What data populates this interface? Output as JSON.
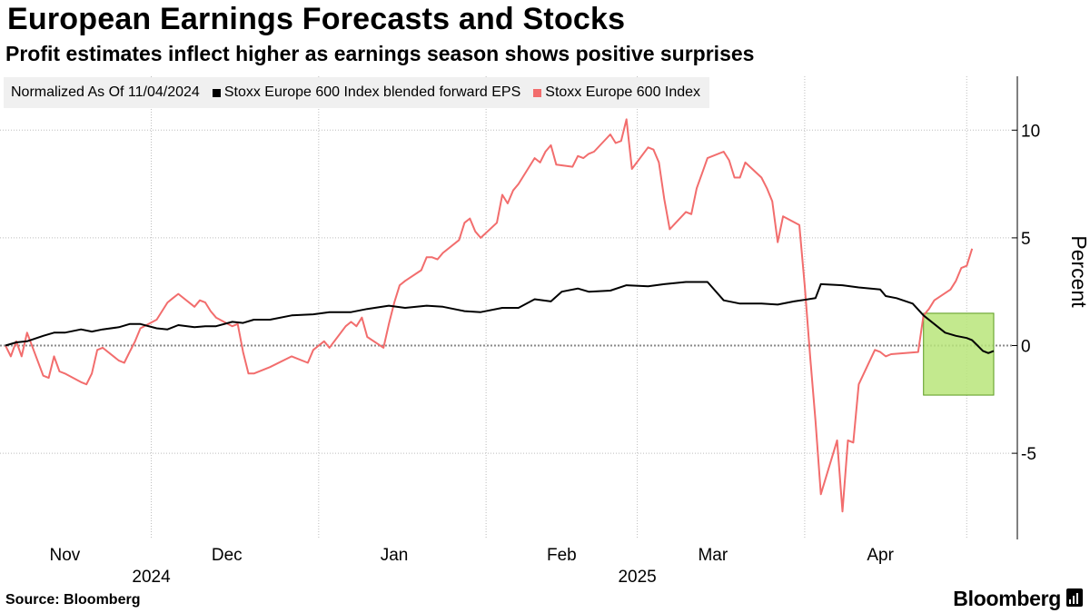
{
  "header": {
    "title": "European Earnings Forecasts and Stocks",
    "subtitle": "Profit estimates inflect higher as earnings season shows positive surprises"
  },
  "legend": {
    "note": "Normalized As Of 11/04/2024",
    "items": [
      {
        "label": "Stoxx Europe 600 Index blended forward EPS",
        "color": "#000000"
      },
      {
        "label": "Stoxx Europe 600 Index",
        "color": "#f26d6d"
      }
    ]
  },
  "footer": {
    "source": "Source: Bloomberg",
    "brand": "Bloomberg"
  },
  "colors": {
    "eps_line": "#000000",
    "index_line": "#f26d6d",
    "highlight_fill": "#b9e57a",
    "highlight_stroke": "#5a9a1e",
    "grid": "#bdbdbd",
    "zero_line": "#8a8a8a"
  },
  "chart_data": {
    "type": "line",
    "unit": "Percent",
    "x_type": "date",
    "x_range": [
      "2024-11-04",
      "2025-05-06"
    ],
    "ylim": [
      -9,
      12.5
    ],
    "y_ticks": [
      -5,
      0,
      5,
      10
    ],
    "grid": "dotted",
    "y_axis_side": "right",
    "legend_position": "top-left",
    "x_ticks": [
      {
        "date": "2024-11-15",
        "label": "Nov"
      },
      {
        "date": "2024-12-15",
        "label": "Dec"
      },
      {
        "date": "2025-01-15",
        "label": "Jan"
      },
      {
        "date": "2025-02-15",
        "label": "Feb"
      },
      {
        "date": "2025-03-15",
        "label": "Mar"
      },
      {
        "date": "2025-04-15",
        "label": "Apr"
      }
    ],
    "x_month_boundaries": [
      "2024-12-01",
      "2025-01-01",
      "2025-02-01",
      "2025-03-01",
      "2025-04-01",
      "2025-05-01"
    ],
    "year_labels": [
      {
        "date": "2024-12-01",
        "label": "2024"
      },
      {
        "date": "2025-03-01",
        "label": "2025"
      }
    ],
    "highlight": {
      "x_start": "2025-04-23",
      "x_end": "2025-05-06",
      "y_start": -2.3,
      "y_end": 1.5
    },
    "series": [
      {
        "name": "Stoxx Europe 600 Index blended forward EPS",
        "color": "#000000",
        "points": [
          [
            "2024-11-04",
            0.0
          ],
          [
            "2024-11-06",
            0.15
          ],
          [
            "2024-11-08",
            0.2
          ],
          [
            "2024-11-11",
            0.45
          ],
          [
            "2024-11-13",
            0.6
          ],
          [
            "2024-11-15",
            0.6
          ],
          [
            "2024-11-18",
            0.75
          ],
          [
            "2024-11-20",
            0.65
          ],
          [
            "2024-11-22",
            0.75
          ],
          [
            "2024-11-25",
            0.85
          ],
          [
            "2024-11-27",
            1.0
          ],
          [
            "2024-11-29",
            1.0
          ],
          [
            "2024-12-02",
            0.8
          ],
          [
            "2024-12-04",
            0.75
          ],
          [
            "2024-12-06",
            0.95
          ],
          [
            "2024-12-09",
            0.85
          ],
          [
            "2024-12-11",
            0.9
          ],
          [
            "2024-12-13",
            0.9
          ],
          [
            "2024-12-16",
            1.1
          ],
          [
            "2024-12-18",
            1.05
          ],
          [
            "2024-12-20",
            1.2
          ],
          [
            "2024-12-23",
            1.2
          ],
          [
            "2024-12-27",
            1.4
          ],
          [
            "2024-12-31",
            1.45
          ],
          [
            "2025-01-03",
            1.55
          ],
          [
            "2025-01-07",
            1.55
          ],
          [
            "2025-01-10",
            1.7
          ],
          [
            "2025-01-14",
            1.85
          ],
          [
            "2025-01-17",
            1.75
          ],
          [
            "2025-01-21",
            1.85
          ],
          [
            "2025-01-24",
            1.8
          ],
          [
            "2025-01-28",
            1.6
          ],
          [
            "2025-01-31",
            1.55
          ],
          [
            "2025-02-04",
            1.75
          ],
          [
            "2025-02-07",
            1.75
          ],
          [
            "2025-02-10",
            2.15
          ],
          [
            "2025-02-13",
            2.05
          ],
          [
            "2025-02-15",
            2.5
          ],
          [
            "2025-02-18",
            2.65
          ],
          [
            "2025-02-20",
            2.5
          ],
          [
            "2025-02-24",
            2.55
          ],
          [
            "2025-02-27",
            2.8
          ],
          [
            "2025-03-03",
            2.75
          ],
          [
            "2025-03-06",
            2.85
          ],
          [
            "2025-03-10",
            2.95
          ],
          [
            "2025-03-14",
            2.95
          ],
          [
            "2025-03-17",
            2.1
          ],
          [
            "2025-03-20",
            1.95
          ],
          [
            "2025-03-24",
            1.95
          ],
          [
            "2025-03-27",
            1.9
          ],
          [
            "2025-03-30",
            2.05
          ],
          [
            "2025-04-03",
            2.2
          ],
          [
            "2025-04-04",
            2.85
          ],
          [
            "2025-04-08",
            2.8
          ],
          [
            "2025-04-11",
            2.7
          ],
          [
            "2025-04-15",
            2.6
          ],
          [
            "2025-04-16",
            2.3
          ],
          [
            "2025-04-18",
            2.2
          ],
          [
            "2025-04-21",
            1.95
          ],
          [
            "2025-04-23",
            1.4
          ],
          [
            "2025-04-25",
            1.0
          ],
          [
            "2025-04-27",
            0.6
          ],
          [
            "2025-04-29",
            0.45
          ],
          [
            "2025-05-01",
            0.35
          ],
          [
            "2025-05-02",
            0.25
          ],
          [
            "2025-05-03",
            0.0
          ],
          [
            "2025-05-04",
            -0.25
          ],
          [
            "2025-05-05",
            -0.35
          ],
          [
            "2025-05-06",
            -0.25
          ]
        ]
      },
      {
        "name": "Stoxx Europe 600 Index",
        "color": "#f26d6d",
        "points": [
          [
            "2024-11-04",
            0.0
          ],
          [
            "2024-11-05",
            -0.5
          ],
          [
            "2024-11-06",
            0.2
          ],
          [
            "2024-11-07",
            -0.5
          ],
          [
            "2024-11-08",
            0.6
          ],
          [
            "2024-11-11",
            -1.4
          ],
          [
            "2024-11-12",
            -1.5
          ],
          [
            "2024-11-13",
            -0.5
          ],
          [
            "2024-11-14",
            -1.2
          ],
          [
            "2024-11-15",
            -1.3
          ],
          [
            "2024-11-18",
            -1.7
          ],
          [
            "2024-11-19",
            -1.8
          ],
          [
            "2024-11-20",
            -1.3
          ],
          [
            "2024-11-21",
            -0.2
          ],
          [
            "2024-11-22",
            -0.1
          ],
          [
            "2024-11-25",
            -0.7
          ],
          [
            "2024-11-26",
            -0.8
          ],
          [
            "2024-11-27",
            -0.3
          ],
          [
            "2024-11-28",
            0.2
          ],
          [
            "2024-11-29",
            0.8
          ],
          [
            "2024-12-02",
            1.2
          ],
          [
            "2024-12-03",
            1.6
          ],
          [
            "2024-12-04",
            2.0
          ],
          [
            "2024-12-05",
            2.2
          ],
          [
            "2024-12-06",
            2.4
          ],
          [
            "2024-12-09",
            1.8
          ],
          [
            "2024-12-10",
            2.1
          ],
          [
            "2024-12-11",
            2.0
          ],
          [
            "2024-12-12",
            1.6
          ],
          [
            "2024-12-13",
            1.3
          ],
          [
            "2024-12-16",
            0.9
          ],
          [
            "2024-12-17",
            1.0
          ],
          [
            "2024-12-18",
            -0.3
          ],
          [
            "2024-12-19",
            -1.3
          ],
          [
            "2024-12-20",
            -1.3
          ],
          [
            "2024-12-23",
            -1.0
          ],
          [
            "2024-12-27",
            -0.5
          ],
          [
            "2024-12-30",
            -0.8
          ],
          [
            "2024-12-31",
            -0.2
          ],
          [
            "2025-01-02",
            0.2
          ],
          [
            "2025-01-03",
            -0.1
          ],
          [
            "2025-01-06",
            0.9
          ],
          [
            "2025-01-07",
            1.1
          ],
          [
            "2025-01-08",
            0.9
          ],
          [
            "2025-01-09",
            1.3
          ],
          [
            "2025-01-10",
            0.4
          ],
          [
            "2025-01-13",
            -0.1
          ],
          [
            "2025-01-14",
            1.0
          ],
          [
            "2025-01-15",
            2.0
          ],
          [
            "2025-01-16",
            2.8
          ],
          [
            "2025-01-17",
            3.0
          ],
          [
            "2025-01-20",
            3.5
          ],
          [
            "2025-01-21",
            4.1
          ],
          [
            "2025-01-22",
            4.1
          ],
          [
            "2025-01-23",
            4.0
          ],
          [
            "2025-01-24",
            4.3
          ],
          [
            "2025-01-27",
            4.9
          ],
          [
            "2025-01-28",
            5.7
          ],
          [
            "2025-01-29",
            5.9
          ],
          [
            "2025-01-30",
            5.3
          ],
          [
            "2025-01-31",
            5.0
          ],
          [
            "2025-02-03",
            5.7
          ],
          [
            "2025-02-04",
            7.0
          ],
          [
            "2025-02-05",
            6.6
          ],
          [
            "2025-02-06",
            7.2
          ],
          [
            "2025-02-07",
            7.5
          ],
          [
            "2025-02-10",
            8.7
          ],
          [
            "2025-02-11",
            8.5
          ],
          [
            "2025-02-12",
            9.0
          ],
          [
            "2025-02-13",
            9.3
          ],
          [
            "2025-02-14",
            8.4
          ],
          [
            "2025-02-17",
            8.3
          ],
          [
            "2025-02-18",
            8.8
          ],
          [
            "2025-02-19",
            8.7
          ],
          [
            "2025-02-20",
            8.9
          ],
          [
            "2025-02-21",
            9.0
          ],
          [
            "2025-02-24",
            9.8
          ],
          [
            "2025-02-25",
            9.4
          ],
          [
            "2025-02-26",
            9.5
          ],
          [
            "2025-02-27",
            10.5
          ],
          [
            "2025-02-28",
            8.2
          ],
          [
            "2025-03-03",
            9.2
          ],
          [
            "2025-03-04",
            9.1
          ],
          [
            "2025-03-05",
            8.5
          ],
          [
            "2025-03-06",
            6.8
          ],
          [
            "2025-03-07",
            5.4
          ],
          [
            "2025-03-10",
            6.2
          ],
          [
            "2025-03-11",
            6.1
          ],
          [
            "2025-03-12",
            7.3
          ],
          [
            "2025-03-13",
            8.0
          ],
          [
            "2025-03-14",
            8.7
          ],
          [
            "2025-03-17",
            9.0
          ],
          [
            "2025-03-18",
            8.6
          ],
          [
            "2025-03-19",
            7.8
          ],
          [
            "2025-03-20",
            7.8
          ],
          [
            "2025-03-21",
            8.5
          ],
          [
            "2025-03-24",
            7.8
          ],
          [
            "2025-03-25",
            7.3
          ],
          [
            "2025-03-26",
            6.7
          ],
          [
            "2025-03-27",
            4.8
          ],
          [
            "2025-03-28",
            6.0
          ],
          [
            "2025-03-31",
            5.6
          ],
          [
            "2025-04-01",
            2.8
          ],
          [
            "2025-04-02",
            -0.5
          ],
          [
            "2025-04-03",
            -3.5
          ],
          [
            "2025-04-04",
            -6.9
          ],
          [
            "2025-04-07",
            -4.4
          ],
          [
            "2025-04-08",
            -7.7
          ],
          [
            "2025-04-09",
            -4.4
          ],
          [
            "2025-04-10",
            -4.5
          ],
          [
            "2025-04-11",
            -1.8
          ],
          [
            "2025-04-14",
            -0.2
          ],
          [
            "2025-04-15",
            -0.3
          ],
          [
            "2025-04-16",
            -0.5
          ],
          [
            "2025-04-17",
            -0.4
          ],
          [
            "2025-04-22",
            -0.3
          ],
          [
            "2025-04-23",
            1.4
          ],
          [
            "2025-04-24",
            1.7
          ],
          [
            "2025-04-25",
            2.1
          ],
          [
            "2025-04-28",
            2.6
          ],
          [
            "2025-04-29",
            3.0
          ],
          [
            "2025-04-30",
            3.6
          ],
          [
            "2025-05-01",
            3.7
          ],
          [
            "2025-05-02",
            4.5
          ]
        ]
      }
    ]
  }
}
